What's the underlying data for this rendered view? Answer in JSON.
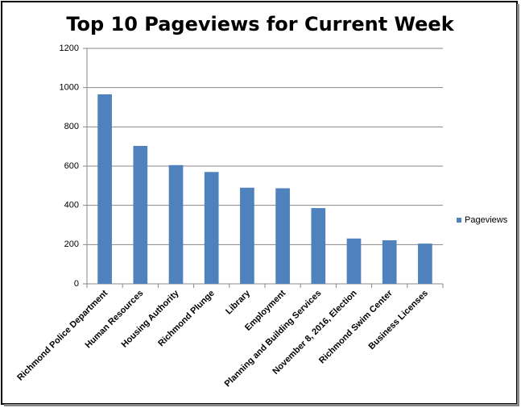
{
  "chart_data": {
    "type": "bar",
    "title": "Top 10 Pageviews for Current Week",
    "categories": [
      "Richmond Police Department",
      "Human Resources",
      "Housing Authority",
      "Richmond Plunge",
      "Library",
      "Employment",
      "Planning and Building Services",
      "November 8, 2016, Election",
      "Richmond Swim Center",
      "Business Licenses"
    ],
    "series": [
      {
        "name": "Pageviews",
        "color": "#4f81bd",
        "values": [
          966,
          703,
          605,
          570,
          490,
          487,
          386,
          231,
          222,
          205
        ]
      }
    ],
    "ylim": [
      0,
      1200
    ],
    "yticks": [
      0,
      200,
      400,
      600,
      800,
      1000,
      1200
    ],
    "grid": true,
    "legend": "right"
  }
}
